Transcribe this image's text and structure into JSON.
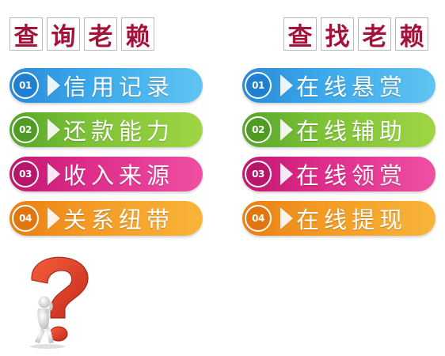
{
  "left_panel": {
    "title_chars": [
      "查",
      "询",
      "老",
      "赖"
    ],
    "items": [
      {
        "number": "01",
        "label": "信用记录",
        "color": "#3aa8ea"
      },
      {
        "number": "02",
        "label": "还款能力",
        "color": "#7cc235"
      },
      {
        "number": "03",
        "label": "收入来源",
        "color": "#de2c8a"
      },
      {
        "number": "04",
        "label": "关系纽带",
        "color": "#f39a24"
      }
    ]
  },
  "right_panel": {
    "title_chars": [
      "查",
      "找",
      "老",
      "赖"
    ],
    "items": [
      {
        "number": "01",
        "label": "在线悬赏",
        "color": "#3aa8ea"
      },
      {
        "number": "02",
        "label": "在线辅助",
        "color": "#7cc235"
      },
      {
        "number": "03",
        "label": "在线领赏",
        "color": "#de2c8a"
      },
      {
        "number": "04",
        "label": "在线提现",
        "color": "#f39a24"
      }
    ]
  },
  "decoration": {
    "icon": "question-mark-figure-icon",
    "accent": "#e8402a"
  }
}
